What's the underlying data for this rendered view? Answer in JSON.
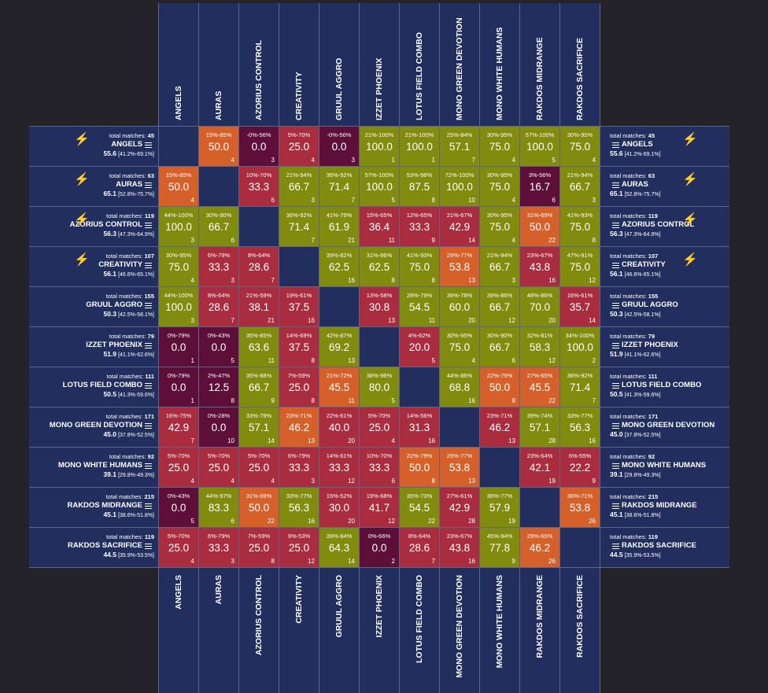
{
  "chart_data": {
    "type": "heatmap",
    "decks": [
      "Angels",
      "Auras",
      "Azorius Control",
      "Creativity",
      "Gruul Aggro",
      "Izzet Phoenix",
      "Lotus Field Combo",
      "Mono Green Devotion",
      "Mono White Humans",
      "Rakdos Midrange",
      "Rakdos Sacrifice"
    ],
    "total_matches_label": "total matches:",
    "total_matches": [
      45,
      63,
      119,
      107,
      155,
      79,
      111,
      171,
      92,
      215,
      119
    ],
    "deck_winrate": [
      "55.6",
      "65.1",
      "56.3",
      "56.1",
      "50.3",
      "51.9",
      "50.5",
      "45.0",
      "39.1",
      "45.1",
      "44.5"
    ],
    "deck_ci": [
      "[41.2%-69.1%]",
      "[52.8%-75.7%]",
      "[47.3%-64.9%]",
      "[46.6%-65.1%]",
      "[42.5%-58.1%]",
      "[41.1%-62.6%]",
      "[41.3%-59.6%]",
      "[37.8%-52.5%]",
      "[29.8%-49.3%]",
      "[38.6%-51.8%]",
      "[35.9%-53.5%]"
    ],
    "bolt_icon_rows": [
      0,
      1,
      2,
      3
    ],
    "cell_colors": {
      "high": "#818c0e",
      "orange": "#d5602a",
      "mid": "#a92c3f",
      "low": "#5d0f39"
    },
    "matrix": [
      [
        null,
        {
          "ci": "15%-85%",
          "wr": "50.0",
          "n": 4,
          "c": "orange"
        },
        {
          "ci": "-0%-56%",
          "wr": "0.0",
          "n": 3,
          "c": "low"
        },
        {
          "ci": "5%-70%",
          "wr": "25.0",
          "n": 4,
          "c": "mid"
        },
        {
          "ci": "-0%-56%",
          "wr": "0.0",
          "n": 3,
          "c": "low"
        },
        {
          "ci": "21%-100%",
          "wr": "100.0",
          "n": 1,
          "c": "high"
        },
        {
          "ci": "21%-100%",
          "wr": "100.0",
          "n": 1,
          "c": "high"
        },
        {
          "ci": "25%-84%",
          "wr": "57.1",
          "n": 7,
          "c": "high"
        },
        {
          "ci": "30%-95%",
          "wr": "75.0",
          "n": 4,
          "c": "high"
        },
        {
          "ci": "57%-100%",
          "wr": "100.0",
          "n": 5,
          "c": "high"
        },
        {
          "ci": "30%-95%",
          "wr": "75.0",
          "n": 4,
          "c": "high"
        }
      ],
      [
        {
          "ci": "15%-85%",
          "wr": "50.0",
          "n": 4,
          "c": "orange"
        },
        null,
        {
          "ci": "10%-70%",
          "wr": "33.3",
          "n": 6,
          "c": "mid"
        },
        {
          "ci": "21%-94%",
          "wr": "66.7",
          "n": 3,
          "c": "high"
        },
        {
          "ci": "36%-92%",
          "wr": "71.4",
          "n": 7,
          "c": "high"
        },
        {
          "ci": "57%-100%",
          "wr": "100.0",
          "n": 5,
          "c": "high"
        },
        {
          "ci": "53%-98%",
          "wr": "87.5",
          "n": 8,
          "c": "high"
        },
        {
          "ci": "72%-100%",
          "wr": "100.0",
          "n": 10,
          "c": "high"
        },
        {
          "ci": "30%-95%",
          "wr": "75.0",
          "n": 4,
          "c": "high"
        },
        {
          "ci": "3%-56%",
          "wr": "16.7",
          "n": 6,
          "c": "low"
        },
        {
          "ci": "21%-94%",
          "wr": "66.7",
          "n": 3,
          "c": "high"
        }
      ],
      [
        {
          "ci": "44%-100%",
          "wr": "100.0",
          "n": 3,
          "c": "high"
        },
        {
          "ci": "30%-90%",
          "wr": "66.7",
          "n": 6,
          "c": "high"
        },
        null,
        {
          "ci": "36%-92%",
          "wr": "71.4",
          "n": 7,
          "c": "high"
        },
        {
          "ci": "41%-79%",
          "wr": "61.9",
          "n": 21,
          "c": "high"
        },
        {
          "ci": "15%-65%",
          "wr": "36.4",
          "n": 11,
          "c": "mid"
        },
        {
          "ci": "12%-65%",
          "wr": "33.3",
          "n": 9,
          "c": "mid"
        },
        {
          "ci": "21%-67%",
          "wr": "42.9",
          "n": 14,
          "c": "mid"
        },
        {
          "ci": "30%-95%",
          "wr": "75.0",
          "n": 4,
          "c": "high"
        },
        {
          "ci": "31%-69%",
          "wr": "50.0",
          "n": 22,
          "c": "orange"
        },
        {
          "ci": "41%-93%",
          "wr": "75.0",
          "n": 8,
          "c": "high"
        }
      ],
      [
        {
          "ci": "30%-95%",
          "wr": "75.0",
          "n": 4,
          "c": "high"
        },
        {
          "ci": "6%-79%",
          "wr": "33.3",
          "n": 3,
          "c": "mid"
        },
        {
          "ci": "8%-64%",
          "wr": "28.6",
          "n": 7,
          "c": "mid"
        },
        null,
        {
          "ci": "39%-82%",
          "wr": "62.5",
          "n": 16,
          "c": "high"
        },
        {
          "ci": "31%-86%",
          "wr": "62.5",
          "n": 8,
          "c": "high"
        },
        {
          "ci": "41%-93%",
          "wr": "75.0",
          "n": 8,
          "c": "high"
        },
        {
          "ci": "29%-77%",
          "wr": "53.8",
          "n": 13,
          "c": "orange"
        },
        {
          "ci": "21%-94%",
          "wr": "66.7",
          "n": 3,
          "c": "high"
        },
        {
          "ci": "23%-67%",
          "wr": "43.8",
          "n": 16,
          "c": "mid"
        },
        {
          "ci": "47%-91%",
          "wr": "75.0",
          "n": 12,
          "c": "high"
        }
      ],
      [
        {
          "ci": "44%-100%",
          "wr": "100.0",
          "n": 3,
          "c": "high"
        },
        {
          "ci": "8%-64%",
          "wr": "28.6",
          "n": 7,
          "c": "mid"
        },
        {
          "ci": "21%-59%",
          "wr": "38.1",
          "n": 21,
          "c": "mid"
        },
        {
          "ci": "19%-61%",
          "wr": "37.5",
          "n": 16,
          "c": "mid"
        },
        null,
        {
          "ci": "13%-58%",
          "wr": "30.8",
          "n": 13,
          "c": "mid"
        },
        {
          "ci": "28%-79%",
          "wr": "54.5",
          "n": 11,
          "c": "high"
        },
        {
          "ci": "39%-78%",
          "wr": "60.0",
          "n": 20,
          "c": "high"
        },
        {
          "ci": "39%-86%",
          "wr": "66.7",
          "n": 12,
          "c": "high"
        },
        {
          "ci": "48%-86%",
          "wr": "70.0",
          "n": 20,
          "c": "high"
        },
        {
          "ci": "16%-61%",
          "wr": "35.7",
          "n": 14,
          "c": "mid"
        }
      ],
      [
        {
          "ci": "0%-79%",
          "wr": "0.0",
          "n": 1,
          "c": "low"
        },
        {
          "ci": "0%-43%",
          "wr": "0.0",
          "n": 5,
          "c": "low"
        },
        {
          "ci": "35%-85%",
          "wr": "63.6",
          "n": 11,
          "c": "high"
        },
        {
          "ci": "14%-69%",
          "wr": "37.5",
          "n": 8,
          "c": "mid"
        },
        {
          "ci": "42%-87%",
          "wr": "69.2",
          "n": 13,
          "c": "high"
        },
        null,
        {
          "ci": "4%-62%",
          "wr": "20.0",
          "n": 5,
          "c": "mid"
        },
        {
          "ci": "30%-95%",
          "wr": "75.0",
          "n": 4,
          "c": "high"
        },
        {
          "ci": "30%-90%",
          "wr": "66.7",
          "n": 6,
          "c": "high"
        },
        {
          "ci": "32%-81%",
          "wr": "58.3",
          "n": 12,
          "c": "high"
        },
        {
          "ci": "34%-100%",
          "wr": "100.0",
          "n": 2,
          "c": "high"
        }
      ],
      [
        {
          "ci": "0%-79%",
          "wr": "0.0",
          "n": 1,
          "c": "low"
        },
        {
          "ci": "2%-47%",
          "wr": "12.5",
          "n": 8,
          "c": "low"
        },
        {
          "ci": "35%-88%",
          "wr": "66.7",
          "n": 9,
          "c": "high"
        },
        {
          "ci": "7%-59%",
          "wr": "25.0",
          "n": 8,
          "c": "mid"
        },
        {
          "ci": "21%-72%",
          "wr": "45.5",
          "n": 11,
          "c": "orange"
        },
        {
          "ci": "38%-96%",
          "wr": "80.0",
          "n": 5,
          "c": "high"
        },
        null,
        {
          "ci": "44%-86%",
          "wr": "68.8",
          "n": 16,
          "c": "high"
        },
        {
          "ci": "22%-79%",
          "wr": "50.0",
          "n": 8,
          "c": "orange"
        },
        {
          "ci": "27%-65%",
          "wr": "45.5",
          "n": 22,
          "c": "orange"
        },
        {
          "ci": "36%-92%",
          "wr": "71.4",
          "n": 7,
          "c": "high"
        }
      ],
      [
        {
          "ci": "16%-75%",
          "wr": "42.9",
          "n": 7,
          "c": "mid"
        },
        {
          "ci": "0%-28%",
          "wr": "0.0",
          "n": 10,
          "c": "low"
        },
        {
          "ci": "33%-79%",
          "wr": "57.1",
          "n": 14,
          "c": "high"
        },
        {
          "ci": "23%-71%",
          "wr": "46.2",
          "n": 13,
          "c": "orange"
        },
        {
          "ci": "22%-61%",
          "wr": "40.0",
          "n": 20,
          "c": "mid"
        },
        {
          "ci": "5%-70%",
          "wr": "25.0",
          "n": 4,
          "c": "mid"
        },
        {
          "ci": "14%-56%",
          "wr": "31.3",
          "n": 16,
          "c": "mid"
        },
        null,
        {
          "ci": "23%-71%",
          "wr": "46.2",
          "n": 13,
          "c": "mid"
        },
        {
          "ci": "39%-74%",
          "wr": "57.1",
          "n": 28,
          "c": "high"
        },
        {
          "ci": "33%-77%",
          "wr": "56.3",
          "n": 16,
          "c": "high"
        }
      ],
      [
        {
          "ci": "5%-70%",
          "wr": "25.0",
          "n": 4,
          "c": "mid"
        },
        {
          "ci": "5%-70%",
          "wr": "25.0",
          "n": 4,
          "c": "mid"
        },
        {
          "ci": "5%-70%",
          "wr": "25.0",
          "n": 4,
          "c": "mid"
        },
        {
          "ci": "6%-79%",
          "wr": "33.3",
          "n": 3,
          "c": "mid"
        },
        {
          "ci": "14%-61%",
          "wr": "33.3",
          "n": 12,
          "c": "mid"
        },
        {
          "ci": "10%-70%",
          "wr": "33.3",
          "n": 6,
          "c": "mid"
        },
        {
          "ci": "22%-79%",
          "wr": "50.0",
          "n": 8,
          "c": "orange"
        },
        {
          "ci": "29%-77%",
          "wr": "53.8",
          "n": 13,
          "c": "orange"
        },
        null,
        {
          "ci": "23%-64%",
          "wr": "42.1",
          "n": 19,
          "c": "mid"
        },
        {
          "ci": "6%-55%",
          "wr": "22.2",
          "n": 9,
          "c": "mid"
        }
      ],
      [
        {
          "ci": "0%-43%",
          "wr": "0.0",
          "n": 5,
          "c": "low"
        },
        {
          "ci": "44%-97%",
          "wr": "83.3",
          "n": 6,
          "c": "high"
        },
        {
          "ci": "31%-69%",
          "wr": "50.0",
          "n": 22,
          "c": "orange"
        },
        {
          "ci": "33%-77%",
          "wr": "56.3",
          "n": 16,
          "c": "high"
        },
        {
          "ci": "15%-52%",
          "wr": "30.0",
          "n": 20,
          "c": "mid"
        },
        {
          "ci": "19%-68%",
          "wr": "41.7",
          "n": 12,
          "c": "mid"
        },
        {
          "ci": "35%-73%",
          "wr": "54.5",
          "n": 22,
          "c": "high"
        },
        {
          "ci": "27%-61%",
          "wr": "42.9",
          "n": 28,
          "c": "mid"
        },
        {
          "ci": "36%-77%",
          "wr": "57.9",
          "n": 19,
          "c": "high"
        },
        null,
        {
          "ci": "36%-71%",
          "wr": "53.8",
          "n": 26,
          "c": "orange"
        }
      ],
      [
        {
          "ci": "5%-70%",
          "wr": "25.0",
          "n": 4,
          "c": "mid"
        },
        {
          "ci": "6%-79%",
          "wr": "33.3",
          "n": 3,
          "c": "mid"
        },
        {
          "ci": "7%-59%",
          "wr": "25.0",
          "n": 8,
          "c": "mid"
        },
        {
          "ci": "9%-53%",
          "wr": "25.0",
          "n": 12,
          "c": "mid"
        },
        {
          "ci": "39%-84%",
          "wr": "64.3",
          "n": 14,
          "c": "high"
        },
        {
          "ci": "0%-66%",
          "wr": "0.0",
          "n": 2,
          "c": "low"
        },
        {
          "ci": "8%-64%",
          "wr": "28.6",
          "n": 7,
          "c": "mid"
        },
        {
          "ci": "23%-67%",
          "wr": "43.8",
          "n": 16,
          "c": "mid"
        },
        {
          "ci": "45%-94%",
          "wr": "77.8",
          "n": 9,
          "c": "high"
        },
        {
          "ci": "29%-65%",
          "wr": "46.2",
          "n": 26,
          "c": "orange"
        },
        null
      ]
    ]
  }
}
